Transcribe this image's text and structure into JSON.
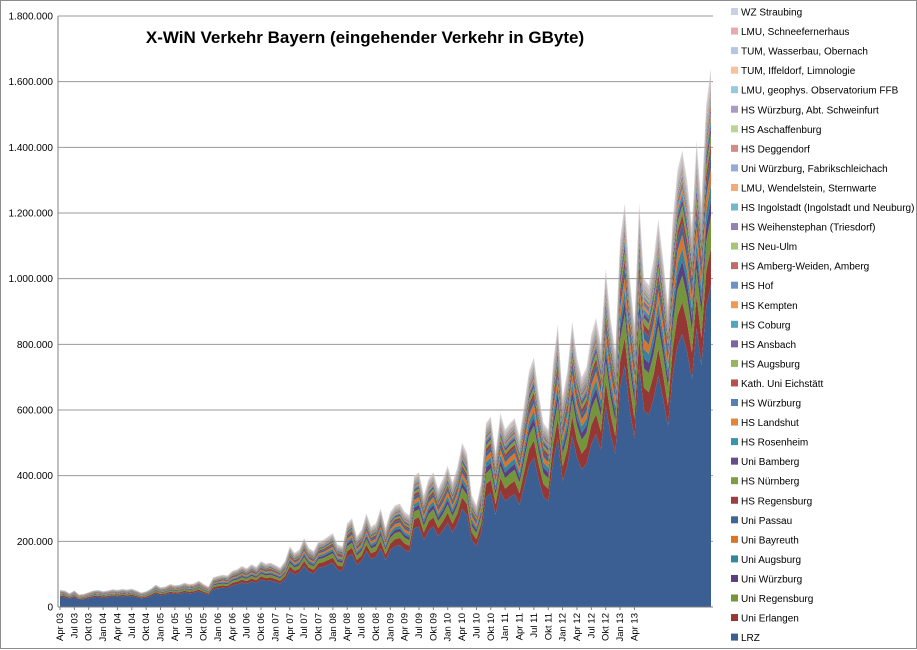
{
  "chart_data": {
    "type": "area",
    "stacked": true,
    "title": "X-WiN Verkehr Bayern (eingehender Verkehr in GByte)",
    "xlabel": "",
    "ylabel": "",
    "ylim": [
      0,
      1800000
    ],
    "yticks": [
      0,
      200000,
      400000,
      600000,
      800000,
      1000000,
      1200000,
      1400000,
      1600000,
      1800000
    ],
    "ytick_labels": [
      "0",
      "200.000",
      "400.000",
      "600.000",
      "800.000",
      "1.000.000",
      "1.200.000",
      "1.400.000",
      "1.600.000",
      "1.800.000"
    ],
    "x_start": "2003-04",
    "x_end": "2013-06",
    "x_tick_labels": [
      "Apr 03",
      "Jul 03",
      "Okt 03",
      "Jan 04",
      "Apr 04",
      "Jul 04",
      "Okt 04",
      "Jan 05",
      "Apr 05",
      "Jul 05",
      "Okt 05",
      "Jan 06",
      "Apr 06",
      "Jul 06",
      "Okt 06",
      "Jan 07",
      "Apr 07",
      "Jul 07",
      "Okt 07",
      "Jan 08",
      "Apr 08",
      "Jul 08",
      "Okt 08",
      "Jan 09",
      "Apr 09",
      "Jul 09",
      "Okt 09",
      "Jan 10",
      "Apr 10",
      "Jul 10",
      "Okt 10",
      "Jan 11",
      "Apr 11",
      "Jul 11",
      "Okt 11",
      "Jan 12",
      "Apr 12",
      "Jul 12",
      "Okt 12",
      "Jan 13",
      "Apr 13"
    ],
    "grid": true,
    "legend_position": "right",
    "totals": [
      52000,
      50000,
      42000,
      50000,
      38000,
      40000,
      45000,
      50000,
      52000,
      48000,
      50000,
      54000,
      52000,
      55000,
      53000,
      56000,
      50000,
      44000,
      48000,
      56000,
      68000,
      60000,
      62000,
      70000,
      66000,
      68000,
      74000,
      70000,
      72000,
      80000,
      70000,
      62000,
      90000,
      95000,
      98000,
      96000,
      110000,
      115000,
      125000,
      118000,
      130000,
      122000,
      140000,
      132000,
      135000,
      128000,
      120000,
      140000,
      185000,
      165000,
      175000,
      210000,
      180000,
      170000,
      200000,
      205000,
      215000,
      225000,
      190000,
      185000,
      255000,
      270000,
      215000,
      235000,
      285000,
      245000,
      255000,
      300000,
      240000,
      290000,
      310000,
      315000,
      290000,
      280000,
      400000,
      410000,
      340000,
      390000,
      410000,
      360000,
      390000,
      430000,
      380000,
      425000,
      500000,
      470000,
      340000,
      310000,
      380000,
      560000,
      580000,
      470000,
      590000,
      540000,
      560000,
      575000,
      520000,
      620000,
      720000,
      760000,
      650000,
      560000,
      540000,
      740000,
      860000,
      640000,
      720000,
      870000,
      760000,
      700000,
      730000,
      830000,
      880000,
      800000,
      1030000,
      880000,
      780000,
      1120000,
      1230000,
      1010000,
      860000,
      1230000,
      1000000,
      980000,
      1060000,
      1180000,
      1060000,
      920000,
      1180000,
      1330000,
      1390000,
      1300000,
      1160000,
      1420000,
      1230000,
      1530000,
      1640000
    ],
    "legend_bottom_to_top": [
      "LRZ",
      "Uni Erlangen",
      "Uni Regensburg",
      "Uni Würzburg",
      "Uni Augsburg",
      "Uni Bayreuth",
      "Uni Passau",
      "HS Regensburg",
      "HS Nürnberg",
      "Uni Bamberg",
      "HS Rosenheim",
      "HS Landshut",
      "HS Würzburg",
      "Kath. Uni Eichstätt",
      "HS Augsburg",
      "HS Ansbach",
      "HS Coburg",
      "HS Kempten",
      "HS Hof",
      "HS Amberg-Weiden, Amberg",
      "HS Neu-Ulm",
      "HS Weihenstephan (Triesdorf)",
      "HS Ingolstadt (Ingolstadt und Neuburg)",
      "LMU, Wendelstein, Sternwarte",
      "Uni Würzburg, Fabrikschleichach",
      "HS Deggendorf",
      "HS Aschaffenburg",
      "HS Würzburg, Abt. Schweinfurt",
      "LMU, geophys. Observatorium FFB",
      "TUM, Iffeldorf, Limnologie",
      "TUM, Wasserbau, Obernach",
      "LMU, Schneefernerhaus",
      "WZ Straubing"
    ],
    "series_colors": [
      "#3b5f92",
      "#953734",
      "#74953a",
      "#5a4080",
      "#32869e",
      "#d9742a",
      "#3f6694",
      "#9b403d",
      "#7e9d45",
      "#664c8a",
      "#3b93aa",
      "#e3843e",
      "#5480b5",
      "#b5504d",
      "#96b55e",
      "#7c64a0",
      "#53a5bb",
      "#ee9955",
      "#6d93c6",
      "#c26a68",
      "#a8c478",
      "#9380b4",
      "#72b7cb",
      "#f5ab75",
      "#92acd6",
      "#d38b89",
      "#bcd496",
      "#a99bc6",
      "#96c9d9",
      "#f9c199",
      "#b2c7e6",
      "#e4acaa",
      "#c9d0e6"
    ],
    "series_fraction_percent": [
      60.5,
      7,
      6,
      3.2,
      2.8,
      3,
      2.5,
      2,
      2,
      1.5,
      1.2,
      1,
      0.8,
      0.7,
      0.6,
      0.55,
      0.5,
      0.45,
      0.45,
      0.4,
      0.35,
      0.35,
      0.3,
      0.3,
      0.3,
      0.3,
      0.3,
      0.3,
      0.3,
      0.3,
      0.3,
      0.3,
      0.3
    ]
  }
}
